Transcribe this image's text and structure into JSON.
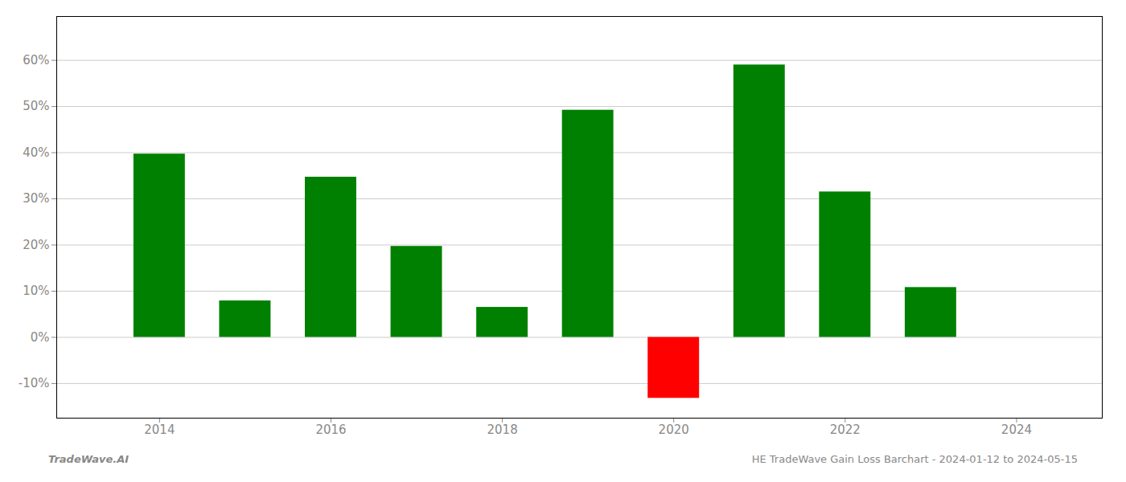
{
  "chart_data": {
    "type": "bar",
    "x": [
      2014,
      2015,
      2016,
      2017,
      2018,
      2019,
      2020,
      2021,
      2022,
      2023
    ],
    "values": [
      0.397,
      0.079,
      0.347,
      0.197,
      0.065,
      0.492,
      -0.132,
      0.59,
      0.315,
      0.108
    ],
    "colors": [
      "#008000",
      "#008000",
      "#008000",
      "#008000",
      "#008000",
      "#008000",
      "#ff0000",
      "#008000",
      "#008000",
      "#008000"
    ],
    "xlim": [
      2012.8,
      2025.0
    ],
    "xticks": [
      2014,
      2016,
      2018,
      2020,
      2022,
      2024
    ],
    "ylim": [
      -0.175,
      0.695
    ],
    "yticks": [
      {
        "value": -0.1,
        "label": "-10%"
      },
      {
        "value": 0.0,
        "label": "0%"
      },
      {
        "value": 0.1,
        "label": "10%"
      },
      {
        "value": 0.2,
        "label": "20%"
      },
      {
        "value": 0.3,
        "label": "30%"
      },
      {
        "value": 0.4,
        "label": "40%"
      },
      {
        "value": 0.5,
        "label": "50%"
      },
      {
        "value": 0.6,
        "label": "60%"
      }
    ],
    "grid": true,
    "annotations": [
      "TradeWave.AI",
      "HE TradeWave Gain Loss Barchart - 2024-01-12 to 2024-05-15"
    ]
  }
}
